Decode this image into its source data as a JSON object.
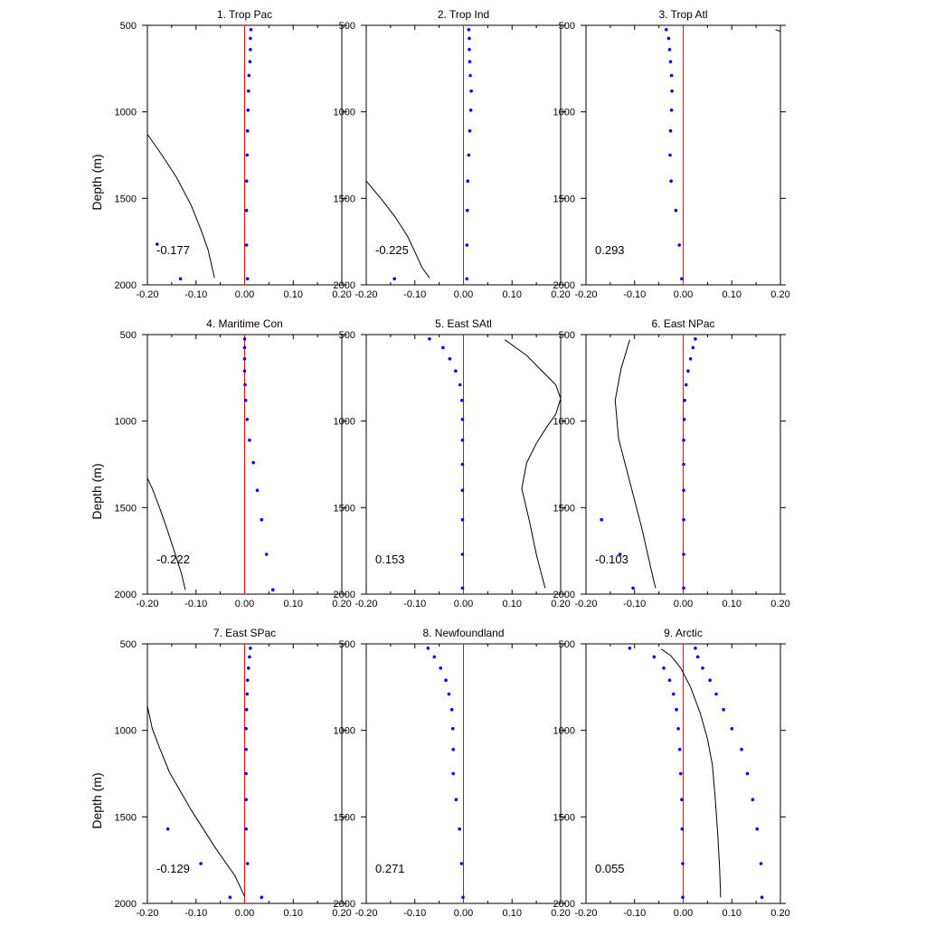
{
  "chart_data": {
    "type": "line",
    "ylabel": "Depth (m)",
    "xlim": [
      -0.2,
      0.2
    ],
    "ylim": [
      500,
      2000
    ],
    "y_inverted": true,
    "x_ticks": [
      "-0.20",
      "-0.10",
      "0.00",
      "0.10",
      "0.20"
    ],
    "y_ticks": [
      "500",
      "1000",
      "1500",
      "2000"
    ],
    "colors": {
      "line": "#000000",
      "dots": "#0000ff",
      "zero": "#ff0000"
    },
    "panels": [
      {
        "title": "1. Trop Pac",
        "stat": "-0.177",
        "line": [
          [
            -0.2,
            1130
          ],
          [
            -0.17,
            1250
          ],
          [
            -0.14,
            1380
          ],
          [
            -0.11,
            1540
          ],
          [
            -0.09,
            1680
          ],
          [
            -0.075,
            1800
          ],
          [
            -0.062,
            1960
          ]
        ],
        "dots": [
          [
            0.013,
            525
          ],
          [
            0.012,
            575
          ],
          [
            0.012,
            640
          ],
          [
            0.011,
            710
          ],
          [
            0.009,
            790
          ],
          [
            0.008,
            880
          ],
          [
            0.007,
            990
          ],
          [
            0.006,
            1110
          ],
          [
            0.005,
            1250
          ],
          [
            0.004,
            1400
          ],
          [
            0.004,
            1570
          ],
          [
            0.004,
            1770
          ],
          [
            0.006,
            1965
          ],
          [
            -0.18,
            1765
          ],
          [
            -0.132,
            1965
          ]
        ]
      },
      {
        "title": "2. Trop Ind",
        "stat": "-0.225",
        "line": [
          [
            -0.2,
            1400
          ],
          [
            -0.17,
            1500
          ],
          [
            -0.14,
            1610
          ],
          [
            -0.115,
            1720
          ],
          [
            -0.098,
            1820
          ],
          [
            -0.085,
            1900
          ],
          [
            -0.07,
            1960
          ]
        ],
        "dots": [
          [
            0.011,
            525
          ],
          [
            0.012,
            575
          ],
          [
            0.012,
            640
          ],
          [
            0.013,
            710
          ],
          [
            0.014,
            790
          ],
          [
            0.016,
            880
          ],
          [
            0.015,
            990
          ],
          [
            0.013,
            1110
          ],
          [
            0.011,
            1250
          ],
          [
            0.009,
            1400
          ],
          [
            0.008,
            1570
          ],
          [
            0.007,
            1770
          ],
          [
            0.007,
            1965
          ],
          [
            -0.142,
            1965
          ]
        ]
      },
      {
        "title": "3. Trop Atl",
        "stat": "0.293",
        "line": [
          [
            0.19,
            525
          ],
          [
            0.2,
            535
          ]
        ],
        "dots": [
          [
            -0.035,
            525
          ],
          [
            -0.03,
            575
          ],
          [
            -0.028,
            640
          ],
          [
            -0.026,
            710
          ],
          [
            -0.024,
            790
          ],
          [
            -0.023,
            880
          ],
          [
            -0.024,
            990
          ],
          [
            -0.026,
            1110
          ],
          [
            -0.027,
            1250
          ],
          [
            -0.025,
            1400
          ],
          [
            -0.015,
            1570
          ],
          [
            -0.008,
            1770
          ],
          [
            -0.003,
            1965
          ]
        ]
      },
      {
        "title": "4. Maritime Con",
        "stat": "-0.222",
        "line": [
          [
            -0.2,
            1330
          ],
          [
            -0.19,
            1390
          ],
          [
            -0.175,
            1500
          ],
          [
            -0.16,
            1620
          ],
          [
            -0.145,
            1750
          ],
          [
            -0.13,
            1880
          ],
          [
            -0.122,
            1975
          ]
        ],
        "dots": [
          [
            0.0,
            525
          ],
          [
            0.0,
            575
          ],
          [
            0.0,
            640
          ],
          [
            0.0,
            710
          ],
          [
            0.001,
            790
          ],
          [
            0.002,
            880
          ],
          [
            0.005,
            990
          ],
          [
            0.01,
            1110
          ],
          [
            0.018,
            1240
          ],
          [
            0.026,
            1400
          ],
          [
            0.035,
            1570
          ],
          [
            0.045,
            1770
          ],
          [
            0.058,
            1975
          ]
        ]
      },
      {
        "title": "5. East SAtl",
        "stat": "0.153",
        "line": [
          [
            0.085,
            530
          ],
          [
            0.13,
            620
          ],
          [
            0.165,
            720
          ],
          [
            0.19,
            790
          ],
          [
            0.2,
            870
          ],
          [
            0.19,
            960
          ],
          [
            0.17,
            1040
          ],
          [
            0.15,
            1130
          ],
          [
            0.13,
            1240
          ],
          [
            0.12,
            1390
          ],
          [
            0.135,
            1570
          ],
          [
            0.15,
            1770
          ],
          [
            0.168,
            1965
          ]
        ],
        "dots": [
          [
            -0.07,
            525
          ],
          [
            -0.042,
            575
          ],
          [
            -0.028,
            640
          ],
          [
            -0.016,
            710
          ],
          [
            -0.007,
            790
          ],
          [
            -0.003,
            880
          ],
          [
            -0.002,
            990
          ],
          [
            -0.002,
            1110
          ],
          [
            -0.002,
            1250
          ],
          [
            -0.002,
            1400
          ],
          [
            -0.002,
            1570
          ],
          [
            -0.002,
            1770
          ],
          [
            -0.002,
            1965
          ]
        ]
      },
      {
        "title": "6. East NPac",
        "stat": "-0.103",
        "line": [
          [
            -0.11,
            530
          ],
          [
            -0.128,
            700
          ],
          [
            -0.14,
            880
          ],
          [
            -0.133,
            1100
          ],
          [
            -0.11,
            1350
          ],
          [
            -0.085,
            1620
          ],
          [
            -0.065,
            1870
          ],
          [
            -0.057,
            1965
          ]
        ],
        "dots": [
          [
            0.025,
            525
          ],
          [
            0.02,
            575
          ],
          [
            0.015,
            640
          ],
          [
            0.01,
            710
          ],
          [
            0.006,
            790
          ],
          [
            0.003,
            880
          ],
          [
            0.002,
            990
          ],
          [
            0.001,
            1110
          ],
          [
            0.001,
            1250
          ],
          [
            0.001,
            1400
          ],
          [
            0.001,
            1570
          ],
          [
            0.001,
            1770
          ],
          [
            0.001,
            1965
          ],
          [
            -0.168,
            1570
          ],
          [
            -0.13,
            1770
          ],
          [
            -0.103,
            1965
          ]
        ]
      },
      {
        "title": "7. East SPac",
        "stat": "-0.129",
        "line": [
          [
            -0.2,
            860
          ],
          [
            -0.19,
            990
          ],
          [
            -0.175,
            1100
          ],
          [
            -0.155,
            1240
          ],
          [
            -0.11,
            1460
          ],
          [
            -0.06,
            1680
          ],
          [
            -0.02,
            1840
          ],
          [
            0.0,
            1960
          ]
        ],
        "dots": [
          [
            0.012,
            525
          ],
          [
            0.01,
            575
          ],
          [
            0.008,
            640
          ],
          [
            0.006,
            710
          ],
          [
            0.005,
            790
          ],
          [
            0.004,
            880
          ],
          [
            0.003,
            990
          ],
          [
            0.003,
            1110
          ],
          [
            0.003,
            1250
          ],
          [
            0.003,
            1400
          ],
          [
            0.003,
            1570
          ],
          [
            0.006,
            1770
          ],
          [
            0.035,
            1965
          ],
          [
            -0.158,
            1570
          ],
          [
            -0.09,
            1770
          ],
          [
            -0.03,
            1965
          ]
        ]
      },
      {
        "title": "8. Newfoundland",
        "stat": "0.271",
        "line": [],
        "dots": [
          [
            -0.073,
            525
          ],
          [
            -0.06,
            575
          ],
          [
            -0.047,
            640
          ],
          [
            -0.036,
            710
          ],
          [
            -0.03,
            790
          ],
          [
            -0.024,
            880
          ],
          [
            -0.022,
            990
          ],
          [
            -0.021,
            1110
          ],
          [
            -0.021,
            1250
          ],
          [
            -0.015,
            1400
          ],
          [
            -0.008,
            1570
          ],
          [
            -0.004,
            1770
          ],
          [
            -0.001,
            1965
          ]
        ]
      },
      {
        "title": "9. Arctic",
        "stat": "0.055",
        "line": [
          [
            -0.045,
            530
          ],
          [
            -0.025,
            570
          ],
          [
            -0.005,
            640
          ],
          [
            0.015,
            750
          ],
          [
            0.035,
            900
          ],
          [
            0.05,
            1050
          ],
          [
            0.06,
            1200
          ],
          [
            0.066,
            1400
          ],
          [
            0.071,
            1600
          ],
          [
            0.075,
            1800
          ],
          [
            0.077,
            1965
          ]
        ],
        "dots": [
          [
            0.025,
            525
          ],
          [
            0.03,
            575
          ],
          [
            0.04,
            640
          ],
          [
            0.055,
            710
          ],
          [
            0.068,
            790
          ],
          [
            0.083,
            880
          ],
          [
            0.1,
            990
          ],
          [
            0.12,
            1110
          ],
          [
            0.132,
            1250
          ],
          [
            0.143,
            1400
          ],
          [
            0.152,
            1570
          ],
          [
            0.16,
            1770
          ],
          [
            0.162,
            1965
          ],
          [
            -0.11,
            525
          ],
          [
            -0.06,
            575
          ],
          [
            -0.04,
            640
          ],
          [
            -0.028,
            710
          ],
          [
            -0.02,
            790
          ],
          [
            -0.014,
            880
          ],
          [
            -0.01,
            990
          ],
          [
            -0.007,
            1110
          ],
          [
            -0.005,
            1250
          ],
          [
            -0.003,
            1400
          ],
          [
            -0.002,
            1570
          ],
          [
            -0.001,
            1770
          ],
          [
            -0.001,
            1965
          ]
        ]
      }
    ]
  }
}
